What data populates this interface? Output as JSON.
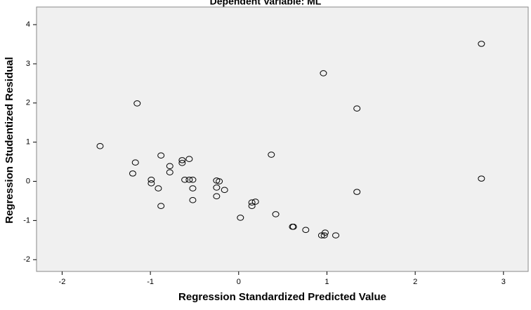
{
  "chart_data": {
    "type": "scatter",
    "title": "Dependent Variable: ML",
    "xlabel": "Regression Standardized Predicted Value",
    "ylabel": "Regression Studentized Residual",
    "x": [
      2.75,
      0.96,
      -1.15,
      1.34,
      -1.57,
      0.37,
      -0.88,
      -1.17,
      -0.64,
      -0.64,
      -0.56,
      -0.78,
      -0.78,
      -1.2,
      -0.99,
      -0.99,
      -0.61,
      -0.56,
      -0.52,
      -0.25,
      -0.22,
      2.75,
      -0.91,
      -0.52,
      -0.25,
      -0.16,
      1.34,
      -0.25,
      -0.52,
      -0.88,
      0.15,
      0.19,
      0.15,
      0.42,
      0.02,
      0.61,
      0.62,
      0.76,
      0.98,
      0.97,
      0.94,
      1.1
    ],
    "y": [
      3.51,
      2.76,
      1.99,
      1.86,
      0.9,
      0.68,
      0.66,
      0.48,
      0.54,
      0.47,
      0.57,
      0.39,
      0.23,
      0.2,
      0.04,
      -0.05,
      0.04,
      0.04,
      0.04,
      0.02,
      0.0,
      0.07,
      -0.18,
      -0.18,
      -0.16,
      -0.22,
      -0.27,
      -0.38,
      -0.48,
      -0.63,
      -0.54,
      -0.52,
      -0.63,
      -0.84,
      -0.93,
      -1.16,
      -1.16,
      -1.24,
      -1.31,
      -1.38,
      -1.38,
      -1.38
    ],
    "xlim": [
      -2.29,
      3.28
    ],
    "ylim": [
      -2.3,
      4.45
    ],
    "xticks": [
      -2,
      -1,
      0,
      1,
      2,
      3
    ],
    "yticks": [
      -2,
      -1,
      0,
      1,
      2,
      3,
      4
    ]
  }
}
